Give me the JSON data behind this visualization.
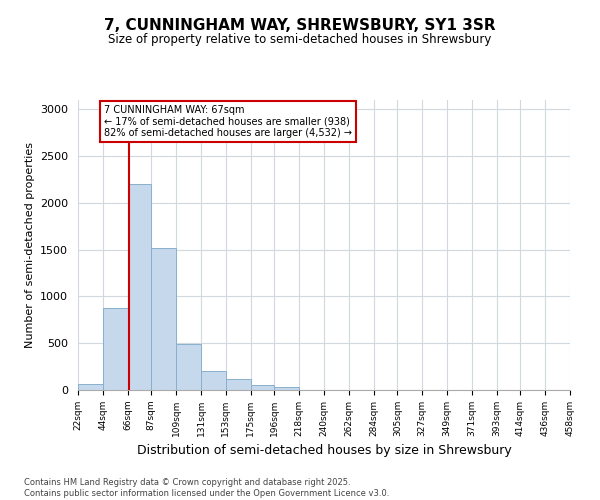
{
  "title_line1": "7, CUNNINGHAM WAY, SHREWSBURY, SY1 3SR",
  "title_line2": "Size of property relative to semi-detached houses in Shrewsbury",
  "xlabel": "Distribution of semi-detached houses by size in Shrewsbury",
  "ylabel": "Number of semi-detached properties",
  "bar_color": "#c6d9ec",
  "bar_edge_color": "#8ab0cc",
  "annotation_box_color": "#cc0000",
  "vline_color": "#cc0000",
  "background_color": "#ffffff",
  "grid_color": "#d0d8e0",
  "property_size": 67,
  "property_label": "7 CUNNINGHAM WAY: 67sqm",
  "smaller_pct": "17%",
  "smaller_count": "938",
  "larger_pct": "82%",
  "larger_count": "4,532",
  "bins": [
    22,
    44,
    66,
    87,
    109,
    131,
    153,
    175,
    196,
    218,
    240,
    262,
    284,
    305,
    327,
    349,
    371,
    393,
    414,
    436,
    458
  ],
  "bin_labels": [
    "22sqm",
    "44sqm",
    "66sqm",
    "87sqm",
    "109sqm",
    "131sqm",
    "153sqm",
    "175sqm",
    "196sqm",
    "218sqm",
    "240sqm",
    "262sqm",
    "284sqm",
    "305sqm",
    "327sqm",
    "349sqm",
    "371sqm",
    "393sqm",
    "414sqm",
    "436sqm",
    "458sqm"
  ],
  "values": [
    60,
    880,
    2200,
    1520,
    490,
    200,
    115,
    55,
    30,
    5,
    0,
    0,
    0,
    0,
    0,
    0,
    0,
    0,
    0,
    0
  ],
  "ylim": [
    0,
    3100
  ],
  "yticks": [
    0,
    500,
    1000,
    1500,
    2000,
    2500,
    3000
  ],
  "footer_line1": "Contains HM Land Registry data © Crown copyright and database right 2025.",
  "footer_line2": "Contains public sector information licensed under the Open Government Licence v3.0."
}
